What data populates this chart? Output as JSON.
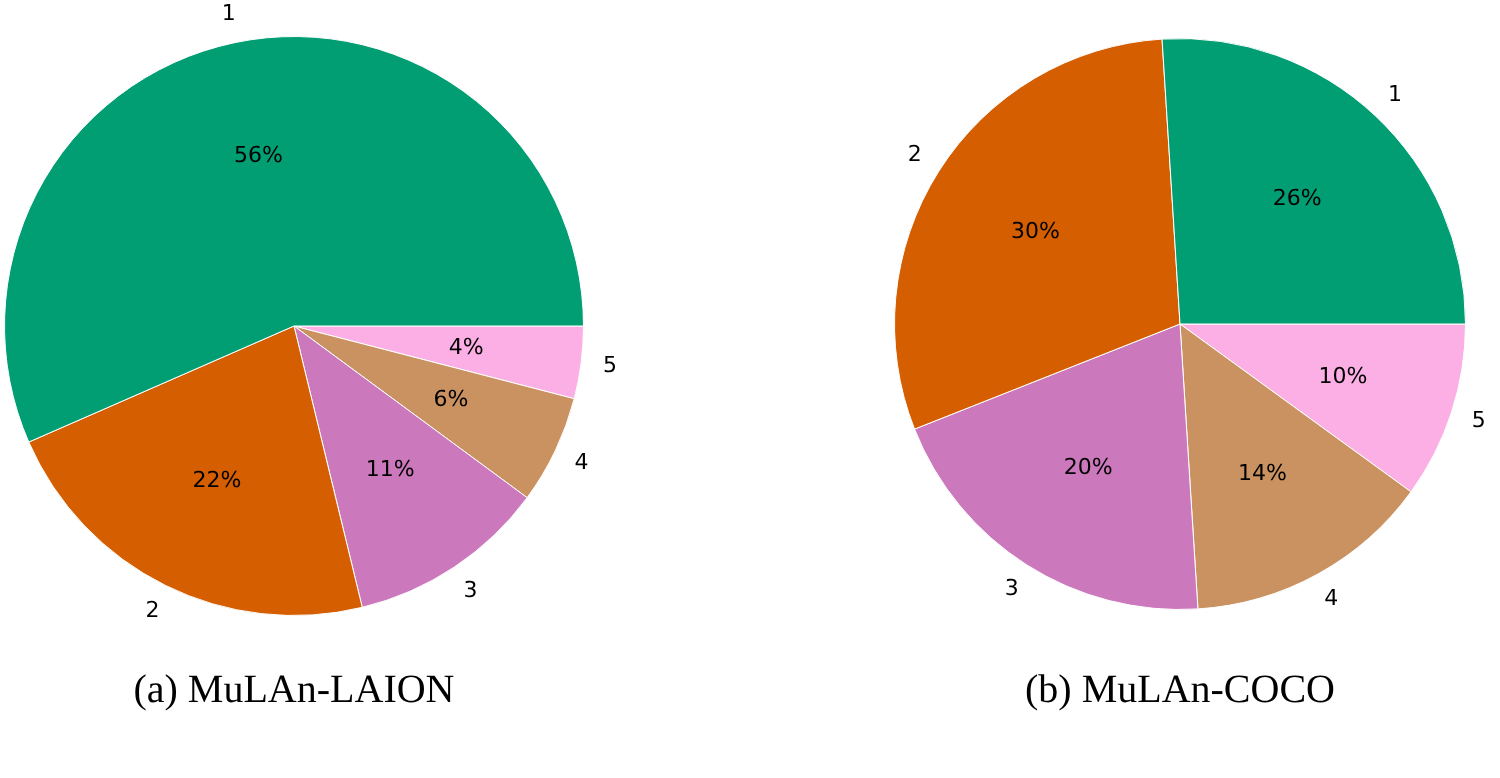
{
  "chart_data": [
    {
      "type": "pie",
      "title": "(a) MuLAn-LAION",
      "categories": [
        "1",
        "2",
        "3",
        "4",
        "5"
      ],
      "values": [
        56,
        22,
        11,
        6,
        4
      ],
      "value_labels": [
        "56%",
        "22%",
        "11%",
        "6%",
        "4%"
      ],
      "colors": [
        "#029e73",
        "#d55e00",
        "#cc78bc",
        "#ca9161",
        "#fbafe4"
      ]
    },
    {
      "type": "pie",
      "title": "(b) MuLAn-COCO",
      "categories": [
        "1",
        "2",
        "3",
        "4",
        "5"
      ],
      "values": [
        26,
        30,
        20,
        14,
        10
      ],
      "value_labels": [
        "26%",
        "30%",
        "20%",
        "14%",
        "10%"
      ],
      "colors": [
        "#029e73",
        "#d55e00",
        "#cc78bc",
        "#ca9161",
        "#fbafe4"
      ]
    }
  ]
}
